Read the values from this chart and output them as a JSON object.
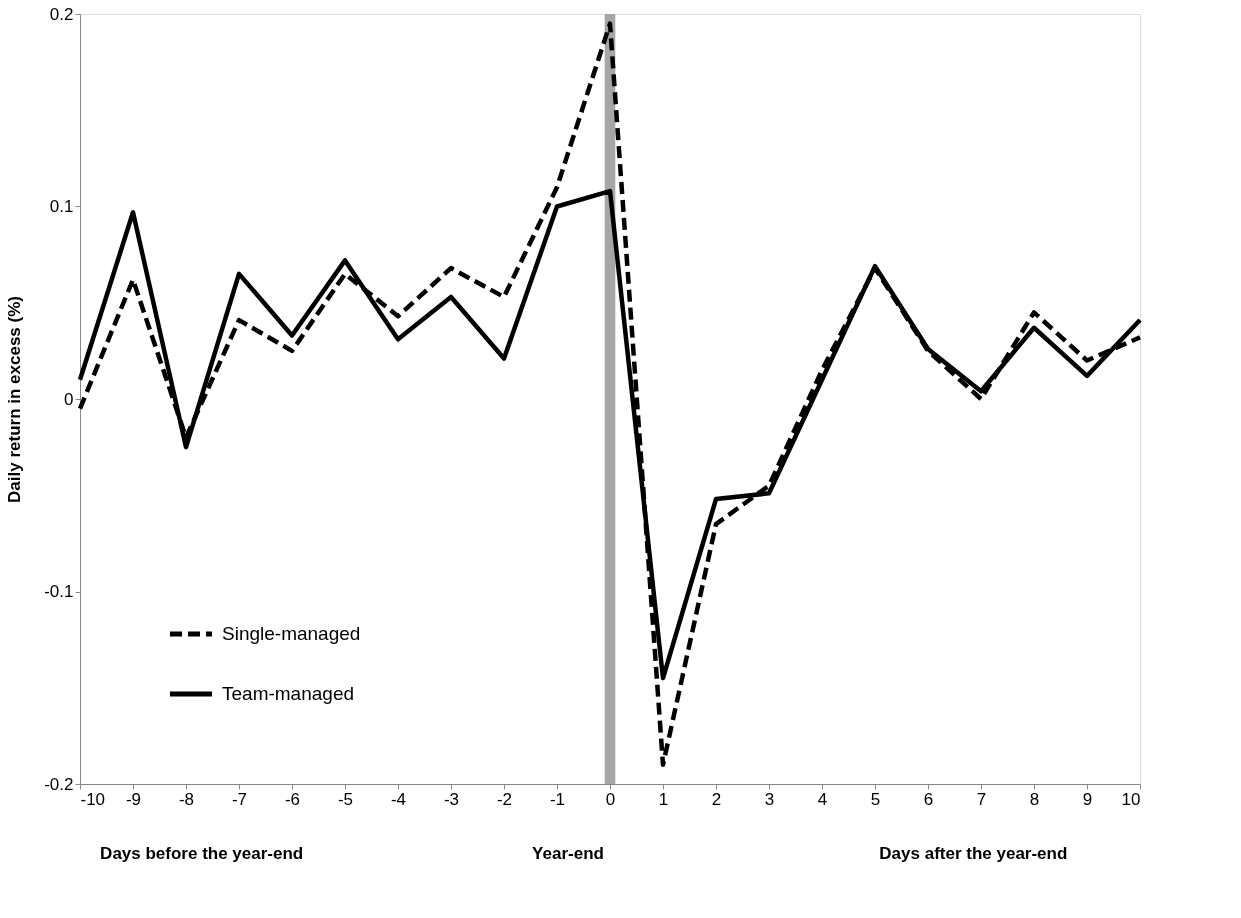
{
  "chart_data": {
    "type": "line",
    "ylabel": "Daily return in excess (%)",
    "x": [
      -10,
      -9,
      -8,
      -7,
      -6,
      -5,
      -4,
      -3,
      -2,
      -1,
      0,
      1,
      2,
      3,
      4,
      5,
      6,
      7,
      8,
      9,
      10
    ],
    "series": [
      {
        "name": "Single-managed",
        "color": "#000000",
        "line_style": "dashed",
        "values": [
          -0.005,
          0.062,
          -0.02,
          0.041,
          0.025,
          0.065,
          0.043,
          0.068,
          0.053,
          0.11,
          0.195,
          -0.19,
          -0.065,
          -0.045,
          0.015,
          0.068,
          0.025,
          0.0,
          0.045,
          0.02,
          0.032
        ]
      },
      {
        "name": "Team-managed",
        "color": "#000000",
        "line_style": "solid",
        "values": [
          0.01,
          0.097,
          -0.025,
          0.065,
          0.033,
          0.072,
          0.031,
          0.053,
          0.021,
          0.1,
          0.108,
          -0.145,
          -0.052,
          -0.049,
          0.01,
          0.069,
          0.026,
          0.004,
          0.037,
          0.012,
          0.041
        ]
      }
    ],
    "xlim": [
      -10,
      10
    ],
    "xticks": [
      -10,
      -9,
      -8,
      -7,
      -6,
      -5,
      -4,
      -3,
      -2,
      -1,
      0,
      1,
      2,
      3,
      4,
      5,
      6,
      7,
      8,
      9,
      10
    ],
    "ylim": [
      -0.2,
      0.2
    ],
    "yticks": [
      -0.2,
      -0.1,
      0,
      0.1,
      0.2
    ],
    "bands": [
      {
        "axis": "x",
        "from": -0.1,
        "to": 0.1,
        "color": "#a6a6a6"
      }
    ],
    "annotations": [
      "Days before the year-end",
      "Year-end",
      "Days after the year-end"
    ],
    "legend": "bottom left",
    "grid": false,
    "marker": "none"
  }
}
